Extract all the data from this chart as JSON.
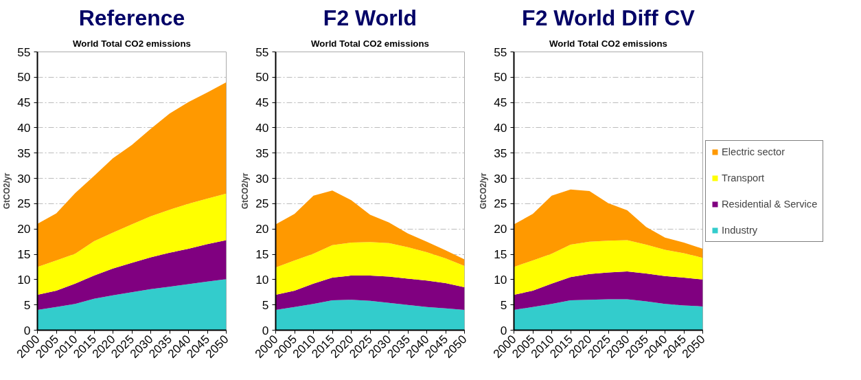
{
  "chart_data": [
    {
      "type": "area",
      "title": "Reference",
      "subtitle": "World Total CO2 emissions",
      "ylabel": "GtCO2/yr",
      "stacked": true,
      "x": [
        2000,
        2005,
        2010,
        2015,
        2020,
        2025,
        2030,
        2035,
        2040,
        2045,
        2050
      ],
      "xlim": [
        2000,
        2050
      ],
      "xticks": [
        2000,
        2005,
        2010,
        2015,
        2020,
        2025,
        2030,
        2035,
        2040,
        2045,
        2050
      ],
      "ylim": [
        0,
        55
      ],
      "yticks": [
        0,
        5,
        10,
        15,
        20,
        25,
        30,
        35,
        40,
        45,
        50,
        55
      ],
      "grid": "y",
      "legend": false,
      "series": [
        {
          "color": "#33cccc",
          "values": [
            4.0,
            4.6,
            5.2,
            6.2,
            6.9,
            7.5,
            8.1,
            8.6,
            9.1,
            9.6,
            10.1
          ]
        },
        {
          "color": "#800080",
          "values": [
            3.0,
            3.2,
            4.0,
            4.6,
            5.3,
            5.8,
            6.3,
            6.7,
            7.0,
            7.4,
            7.7
          ]
        },
        {
          "color": "#ffff00",
          "values": [
            5.5,
            6.0,
            5.9,
            6.8,
            7.1,
            7.6,
            8.1,
            8.5,
            8.9,
            9.0,
            9.2
          ]
        },
        {
          "color": "#ff9900",
          "values": [
            8.5,
            9.3,
            12.0,
            12.9,
            14.7,
            15.7,
            17.3,
            19.0,
            20.1,
            21.0,
            22.0
          ]
        }
      ]
    },
    {
      "type": "area",
      "title": "F2 World",
      "subtitle": "World Total CO2 emissions",
      "ylabel": "GtCO2/yr",
      "stacked": true,
      "x": [
        2000,
        2005,
        2010,
        2015,
        2020,
        2025,
        2030,
        2035,
        2040,
        2045,
        2050
      ],
      "xlim": [
        2000,
        2050
      ],
      "xticks": [
        2000,
        2005,
        2010,
        2015,
        2020,
        2025,
        2030,
        2035,
        2040,
        2045,
        2050
      ],
      "ylim": [
        0,
        55
      ],
      "yticks": [
        0,
        5,
        10,
        15,
        20,
        25,
        30,
        35,
        40,
        45,
        50,
        55
      ],
      "grid": "y",
      "legend": false,
      "series": [
        {
          "color": "#33cccc",
          "values": [
            4.0,
            4.6,
            5.2,
            5.9,
            6.0,
            5.8,
            5.4,
            5.0,
            4.6,
            4.3,
            4.0
          ]
        },
        {
          "color": "#800080",
          "values": [
            3.0,
            3.2,
            4.0,
            4.5,
            4.8,
            5.0,
            5.2,
            5.2,
            5.2,
            5.0,
            4.5
          ]
        },
        {
          "color": "#ffff00",
          "values": [
            5.4,
            6.0,
            5.9,
            6.4,
            6.5,
            6.6,
            6.6,
            6.2,
            5.6,
            4.9,
            4.2
          ]
        },
        {
          "color": "#ff9900",
          "values": [
            8.5,
            9.2,
            11.5,
            10.8,
            8.4,
            5.4,
            4.1,
            2.7,
            2.1,
            1.6,
            1.3
          ]
        }
      ]
    },
    {
      "type": "area",
      "title": "F2 World Diff CV",
      "subtitle": "World Total CO2 emissions",
      "ylabel": "GtCO2/yr",
      "stacked": true,
      "x": [
        2000,
        2005,
        2010,
        2015,
        2020,
        2025,
        2030,
        2035,
        2040,
        2045,
        2050
      ],
      "xlim": [
        2000,
        2050
      ],
      "xticks": [
        2000,
        2005,
        2010,
        2015,
        2020,
        2025,
        2030,
        2035,
        2040,
        2045,
        2050
      ],
      "ylim": [
        0,
        55
      ],
      "yticks": [
        0,
        5,
        10,
        15,
        20,
        25,
        30,
        35,
        40,
        45,
        50,
        55
      ],
      "grid": "y",
      "legend": "right",
      "series": [
        {
          "name": "Industry",
          "color": "#33cccc",
          "values": [
            4.0,
            4.6,
            5.2,
            5.9,
            6.0,
            6.1,
            6.1,
            5.7,
            5.2,
            4.9,
            4.7
          ]
        },
        {
          "name": "Residential & Service",
          "color": "#800080",
          "values": [
            3.0,
            3.2,
            4.0,
            4.6,
            5.1,
            5.3,
            5.5,
            5.5,
            5.5,
            5.5,
            5.3
          ]
        },
        {
          "name": "Transport",
          "color": "#ffff00",
          "values": [
            5.5,
            6.0,
            5.9,
            6.4,
            6.4,
            6.3,
            6.2,
            5.7,
            5.2,
            4.8,
            4.3
          ]
        },
        {
          "name": "Electric sector",
          "color": "#ff9900",
          "values": [
            8.4,
            9.2,
            11.5,
            10.9,
            10.0,
            7.4,
            5.9,
            3.5,
            2.4,
            2.1,
            1.8
          ]
        }
      ]
    }
  ]
}
